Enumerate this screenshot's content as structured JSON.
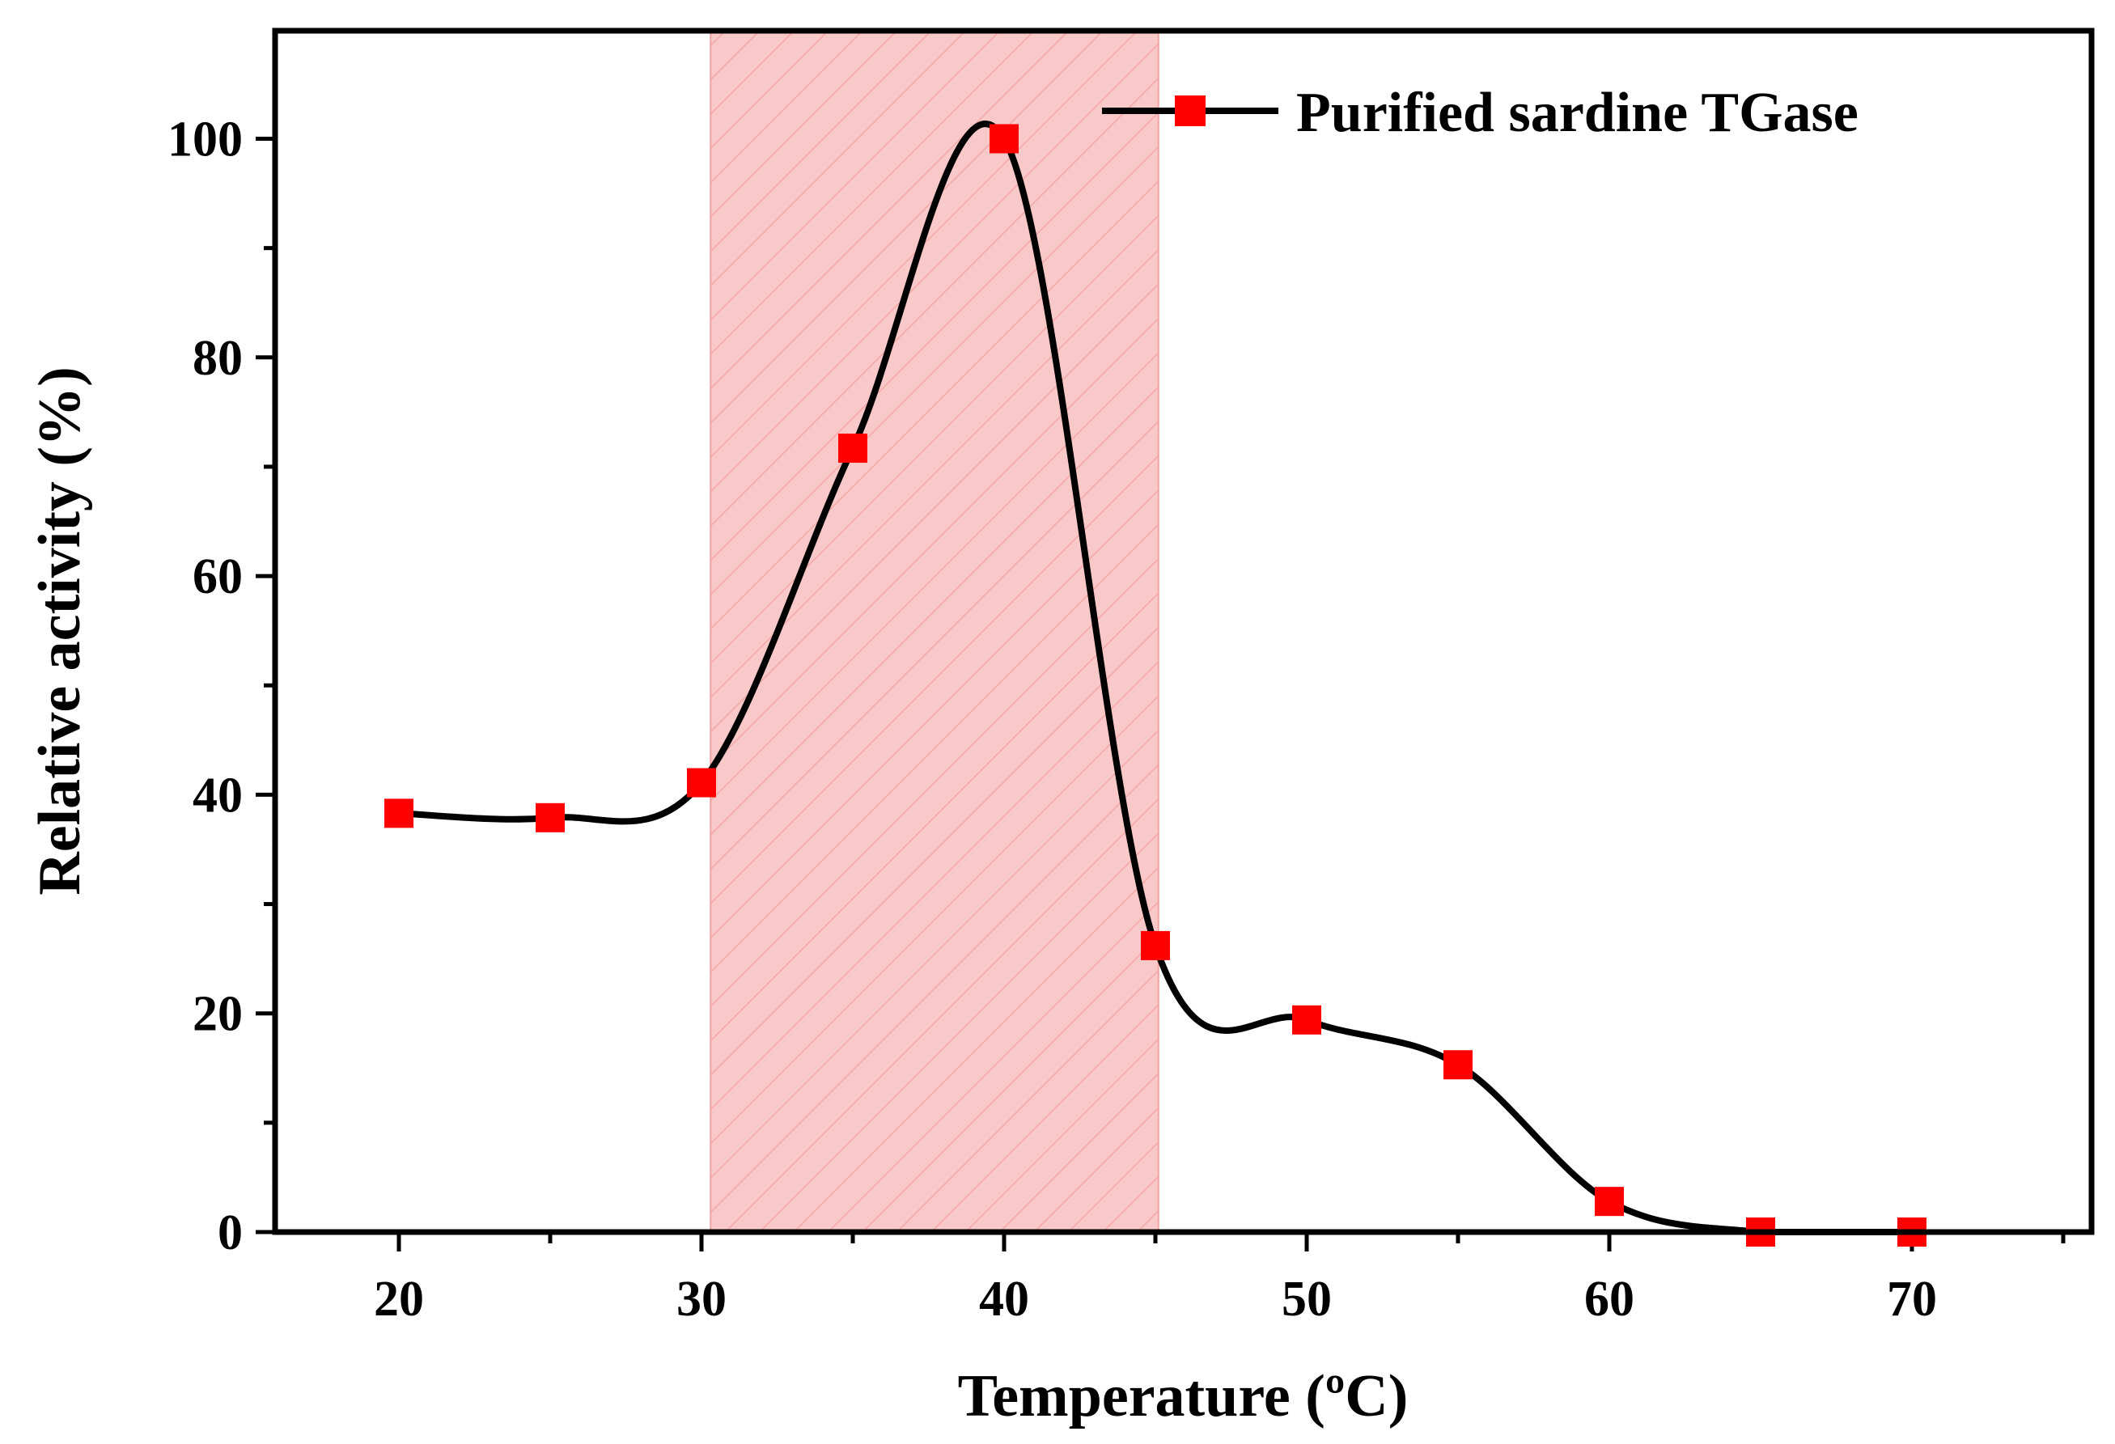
{
  "chart_data": {
    "type": "line",
    "title": "",
    "xlabel": "Temperature (ºC)",
    "ylabel": "Relative activity (%)",
    "xlim": [
      15,
      75
    ],
    "ylim": [
      0,
      110
    ],
    "xticks": [
      20,
      30,
      40,
      50,
      60,
      70
    ],
    "yticks": [
      0,
      20,
      40,
      60,
      80,
      100
    ],
    "x_minor_step": 5,
    "y_minor_step": 10,
    "grid": false,
    "legend_position": "top-right",
    "highlight_region": {
      "x_start": 30.3,
      "x_end": 45.1,
      "color": "#f9c9c9",
      "hatch_color": "#f08a8a"
    },
    "series": [
      {
        "name": "Purified sardine TGase",
        "line_color": "#000000",
        "marker": "square",
        "marker_color": "#ff0000",
        "x": [
          20,
          25,
          30,
          35,
          40,
          45,
          50,
          55,
          60,
          65,
          70
        ],
        "values": [
          38.3,
          37.9,
          41.1,
          71.7,
          100,
          26.2,
          19.4,
          15.3,
          2.8,
          0,
          0
        ],
        "errors": [
          1.2,
          1.2,
          1.0,
          1.0,
          0.6,
          0.8,
          1.1,
          1.0,
          0.8,
          0,
          0
        ]
      }
    ]
  }
}
